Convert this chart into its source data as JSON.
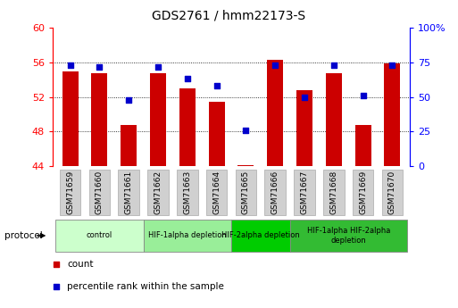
{
  "title": "GDS2761 / hmm22173-S",
  "samples": [
    "GSM71659",
    "GSM71660",
    "GSM71661",
    "GSM71662",
    "GSM71663",
    "GSM71664",
    "GSM71665",
    "GSM71666",
    "GSM71667",
    "GSM71668",
    "GSM71669",
    "GSM71670"
  ],
  "bar_values": [
    55.0,
    54.8,
    48.8,
    54.8,
    53.0,
    51.5,
    44.1,
    56.3,
    52.8,
    54.8,
    48.8,
    55.9
  ],
  "bar_base": 44.0,
  "dot_percentile": [
    73,
    72,
    48,
    72,
    63,
    58,
    26,
    73,
    50,
    73,
    51,
    73
  ],
  "left_ylim": [
    44,
    60
  ],
  "left_yticks": [
    44,
    48,
    52,
    56,
    60
  ],
  "right_ylim": [
    0,
    100
  ],
  "right_yticks": [
    0,
    25,
    50,
    75,
    100
  ],
  "right_yticklabels": [
    "0",
    "25",
    "50",
    "75",
    "100%"
  ],
  "bar_color": "#cc0000",
  "dot_color": "#0000cc",
  "protocol_groups": [
    {
      "label": "control",
      "start": 0,
      "end": 2,
      "color": "#ccffcc"
    },
    {
      "label": "HIF-1alpha depletion",
      "start": 3,
      "end": 5,
      "color": "#99ee99"
    },
    {
      "label": "HIF-2alpha depletion",
      "start": 6,
      "end": 7,
      "color": "#00cc00"
    },
    {
      "label": "HIF-1alpha HIF-2alpha\ndepletion",
      "start": 8,
      "end": 11,
      "color": "#33bb33"
    }
  ],
  "legend_items": [
    {
      "label": "count",
      "color": "#cc0000"
    },
    {
      "label": "percentile rank within the sample",
      "color": "#0000cc"
    }
  ]
}
